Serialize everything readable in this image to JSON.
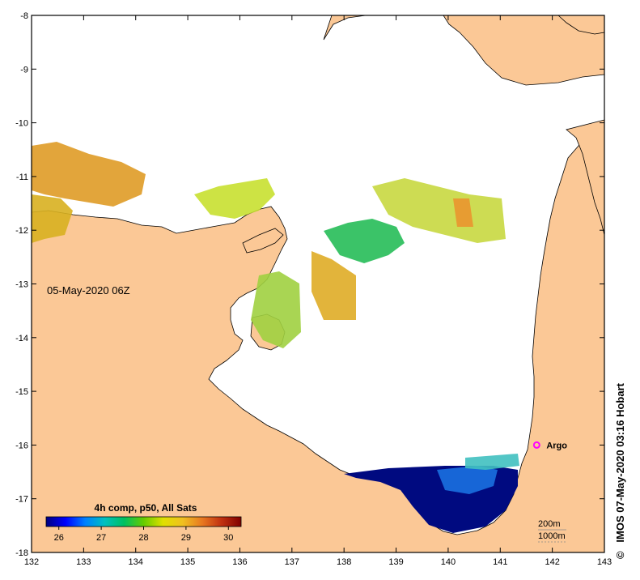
{
  "map": {
    "timestamp": "05-May-2020 06Z",
    "credit": "IMOS 07-May-2020 03:16 Hobart",
    "credit_symbol": "©",
    "lon_ticks": [
      "132",
      "133",
      "134",
      "135",
      "136",
      "137",
      "138",
      "139",
      "140",
      "141",
      "142",
      "143"
    ],
    "lat_ticks": [
      "-8",
      "-9",
      "-10",
      "-11",
      "-12",
      "-13",
      "-14",
      "-15",
      "-16",
      "-17",
      "-18"
    ],
    "lon_range": [
      132,
      143
    ],
    "lat_range": [
      -18,
      -8
    ],
    "marker": {
      "label": "Argo",
      "lon": 141.7,
      "lat": -16.0,
      "color": "#ff00ff"
    },
    "isobaths": [
      "200m",
      "1000m"
    ],
    "colors": {
      "land": "#fbc896",
      "sea": "#ffffff",
      "frame": "#000000"
    }
  },
  "colorbar": {
    "title": "4h comp, p50, All Sats",
    "tick_labels": [
      "26",
      "27",
      "28",
      "29",
      "30"
    ],
    "range": [
      25.7,
      30.3
    ],
    "stops": [
      "#000080",
      "#0000ff",
      "#0080ff",
      "#00c0c0",
      "#00c060",
      "#66cc00",
      "#e0e000",
      "#f0c020",
      "#e87820",
      "#c03010",
      "#800000"
    ]
  }
}
